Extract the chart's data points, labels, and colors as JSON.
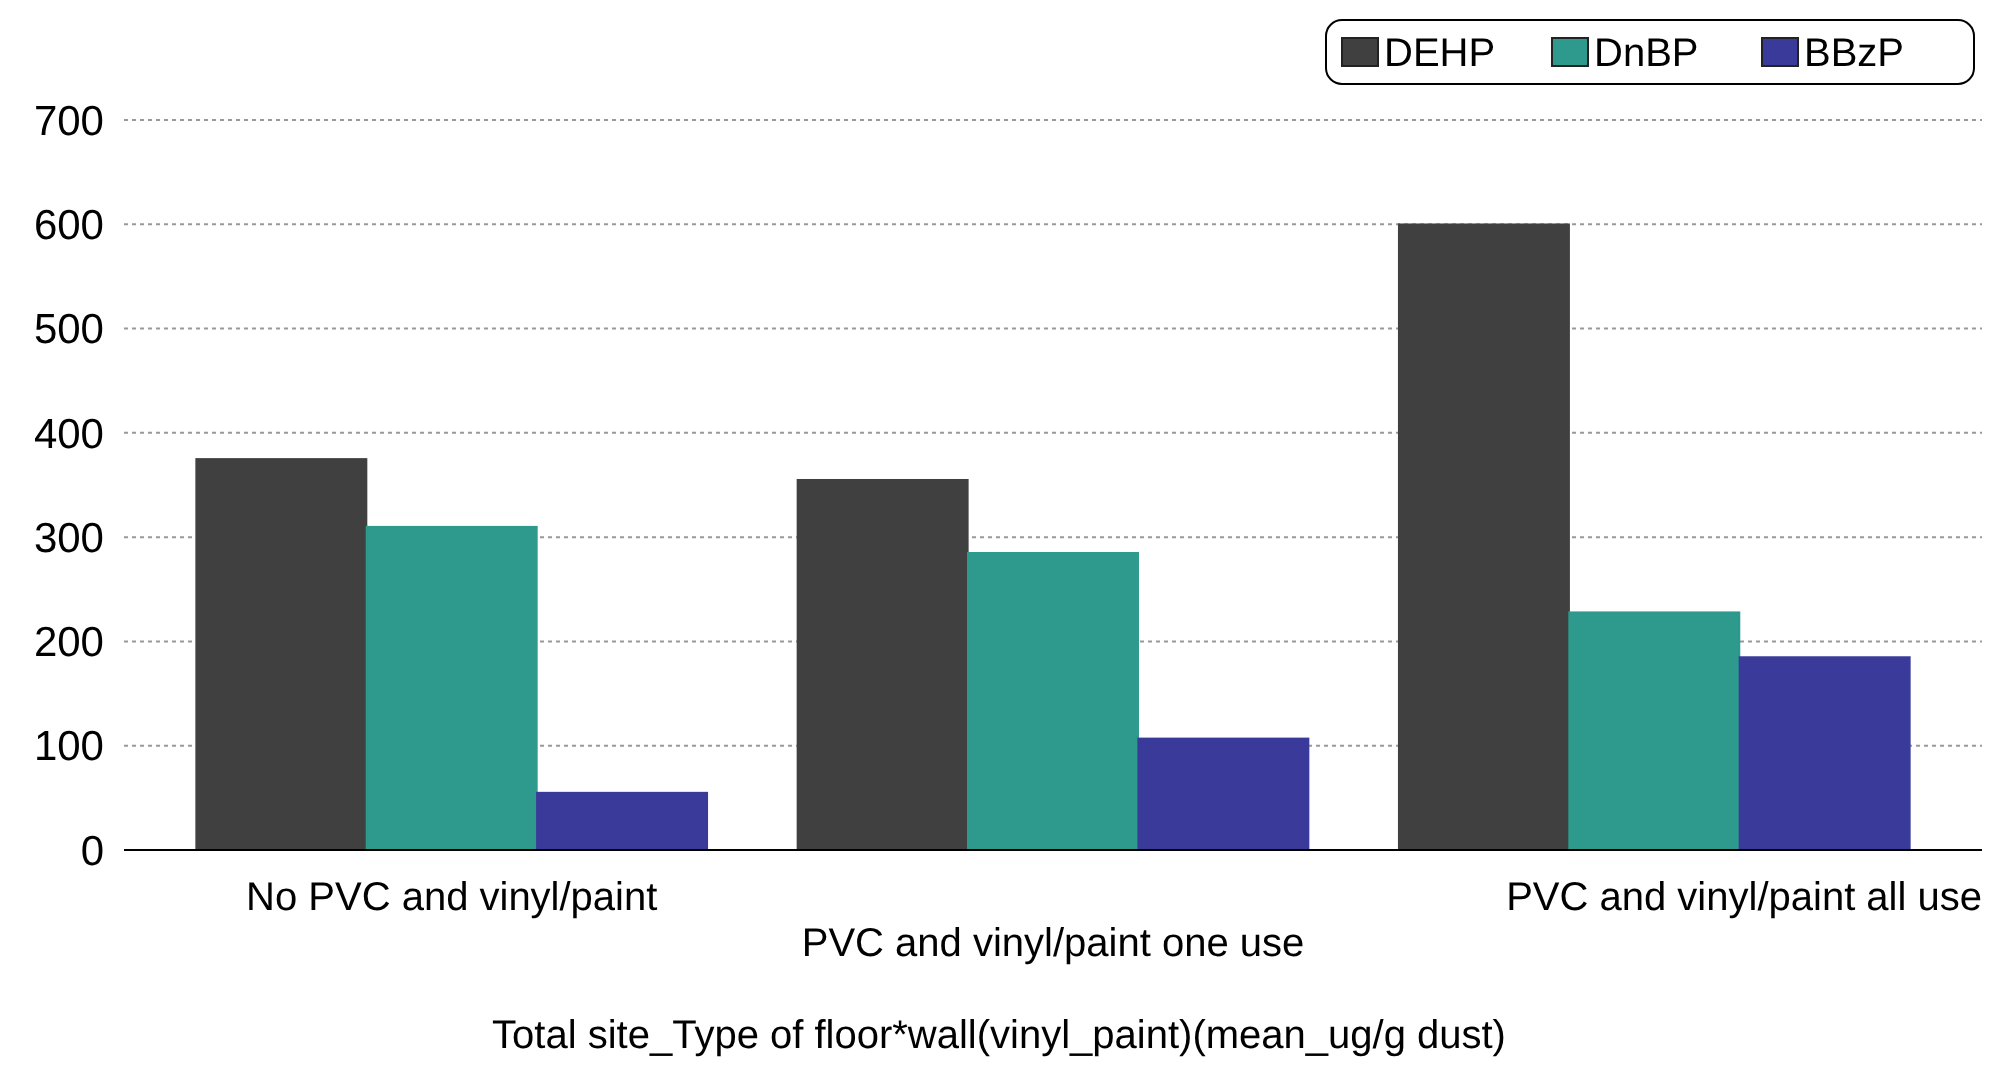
{
  "chart_data": {
    "type": "bar",
    "xlabel": "Total site_Type of floor*wall(vinyl_paint)(mean_ug/g dust)",
    "categories": [
      "No PVC and vinyl/paint",
      "PVC and vinyl/paint one use",
      "PVC and vinyl/paint all use"
    ],
    "series": [
      {
        "name": "DEHP",
        "color": "#404040",
        "values": [
          375,
          355,
          600
        ]
      },
      {
        "name": "DnBP",
        "color": "#2e9a8e",
        "values": [
          310,
          285,
          228
        ]
      },
      {
        "name": "BBzP",
        "color": "#3a3a9a",
        "values": [
          55,
          107,
          185
        ]
      }
    ],
    "ylim": [
      0,
      700
    ],
    "yticks": [
      0,
      100,
      200,
      300,
      400,
      500,
      600,
      700
    ],
    "grid": "y",
    "legend": "top right"
  }
}
